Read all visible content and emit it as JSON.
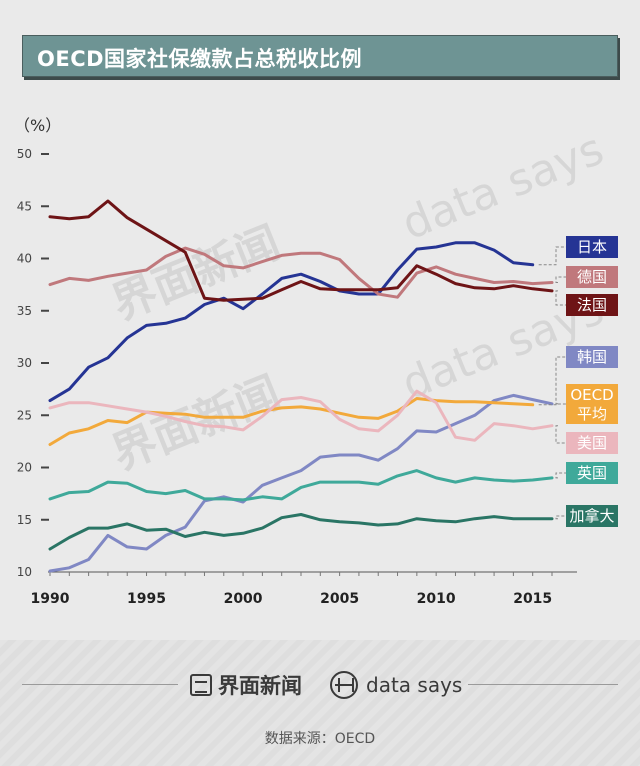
{
  "header": {
    "title": "OECD国家社保缴款占总税收比例"
  },
  "chart_data": {
    "type": "line",
    "title": "OECD国家社保缴款占总税收比例",
    "ylabel": "（%）",
    "xlabel": "",
    "ylim": [
      10,
      50
    ],
    "xlim": [
      1990,
      2016
    ],
    "yticks": [
      10,
      15,
      20,
      25,
      30,
      35,
      40,
      45,
      50
    ],
    "xticks": [
      1990,
      1995,
      2000,
      2005,
      2010,
      2015
    ],
    "x": [
      1990,
      1991,
      1992,
      1993,
      1994,
      1995,
      1996,
      1997,
      1998,
      1999,
      2000,
      2001,
      2002,
      2003,
      2004,
      2005,
      2006,
      2007,
      2008,
      2009,
      2010,
      2011,
      2012,
      2013,
      2014,
      2015,
      2016
    ],
    "series": [
      {
        "name": "日本",
        "color": "#253494",
        "values": [
          26.4,
          27.5,
          29.6,
          30.5,
          32.4,
          33.6,
          33.8,
          34.3,
          35.6,
          36.2,
          35.2,
          36.6,
          38.1,
          38.5,
          37.8,
          36.9,
          36.6,
          36.6,
          38.9,
          40.9,
          41.1,
          41.5,
          41.5,
          40.8,
          39.6,
          39.4,
          null
        ]
      },
      {
        "name": "德国",
        "color": "#c0787c",
        "values": [
          37.5,
          38.1,
          37.9,
          38.3,
          38.6,
          38.9,
          40.2,
          41.0,
          40.4,
          39.3,
          39.1,
          39.7,
          40.3,
          40.5,
          40.5,
          39.9,
          38.1,
          36.6,
          36.3,
          38.6,
          39.2,
          38.5,
          38.1,
          37.7,
          37.8,
          37.6,
          37.7
        ]
      },
      {
        "name": "法国",
        "color": "#6e1416",
        "values": [
          44.0,
          43.8,
          44.0,
          45.5,
          43.9,
          42.8,
          41.7,
          40.6,
          36.2,
          36.0,
          36.1,
          36.2,
          37.0,
          37.8,
          37.1,
          37.0,
          37.0,
          37.0,
          37.2,
          39.3,
          38.5,
          37.6,
          37.2,
          37.1,
          37.4,
          37.1,
          36.9
        ]
      },
      {
        "name": "韩国",
        "color": "#8088c4",
        "values": [
          10.1,
          10.4,
          11.2,
          13.5,
          12.4,
          12.2,
          13.5,
          14.3,
          16.8,
          17.2,
          16.7,
          18.3,
          19.0,
          19.7,
          21.0,
          21.2,
          21.2,
          20.7,
          21.8,
          23.5,
          23.4,
          24.2,
          25.0,
          26.4,
          26.9,
          26.5,
          26.1
        ]
      },
      {
        "name": "OECD平均",
        "color": "#f2a93b",
        "values": [
          22.2,
          23.3,
          23.7,
          24.5,
          24.3,
          25.3,
          25.2,
          25.1,
          24.8,
          24.8,
          24.8,
          25.4,
          25.7,
          25.8,
          25.6,
          25.2,
          24.8,
          24.7,
          25.4,
          26.6,
          26.4,
          26.3,
          26.3,
          26.2,
          26.1,
          26.0,
          null
        ]
      },
      {
        "name": "美国",
        "color": "#ebb6bd",
        "values": [
          25.7,
          26.2,
          26.2,
          25.9,
          25.6,
          25.3,
          24.9,
          24.4,
          24.0,
          23.9,
          23.6,
          24.9,
          26.5,
          26.7,
          26.3,
          24.6,
          23.7,
          23.5,
          25.0,
          27.3,
          26.2,
          22.9,
          22.6,
          24.2,
          24.0,
          23.7,
          24.0
        ]
      },
      {
        "name": "英国",
        "color": "#3fa99a",
        "values": [
          17.0,
          17.6,
          17.7,
          18.6,
          18.5,
          17.7,
          17.5,
          17.8,
          17.0,
          17.0,
          16.9,
          17.2,
          17.0,
          18.1,
          18.6,
          18.6,
          18.6,
          18.4,
          19.2,
          19.7,
          19.0,
          18.6,
          19.0,
          18.8,
          18.7,
          18.8,
          19.0
        ]
      },
      {
        "name": "加拿大",
        "color": "#2a7565",
        "values": [
          12.2,
          13.3,
          14.2,
          14.2,
          14.6,
          14.0,
          14.1,
          13.4,
          13.8,
          13.5,
          13.7,
          14.2,
          15.2,
          15.5,
          15.0,
          14.8,
          14.7,
          14.5,
          14.6,
          15.1,
          14.9,
          14.8,
          15.1,
          15.3,
          15.1,
          15.1,
          15.1
        ]
      }
    ],
    "legend": [
      {
        "text": "日本",
        "bg": "#253494",
        "fg": "#ffffff"
      },
      {
        "text": "德国",
        "bg": "#c0787c",
        "fg": "#ffffff"
      },
      {
        "text": "法国",
        "bg": "#6e1416",
        "fg": "#ffffff"
      },
      {
        "text": "韩国",
        "bg": "#8088c4",
        "fg": "#ffffff"
      },
      {
        "text": "OECD",
        "text2": "平均",
        "bg": "#f2a93b",
        "fg": "#ffffff"
      },
      {
        "text": "美国",
        "bg": "#ebb6bd",
        "fg": "#ffffff"
      },
      {
        "text": "英国",
        "bg": "#3fa99a",
        "fg": "#ffffff"
      },
      {
        "text": "加拿大",
        "bg": "#2a7565",
        "fg": "#ffffff"
      }
    ],
    "watermarks": [
      "界面新闻",
      "data says"
    ]
  },
  "footer": {
    "brand_jiemian": "界面新闻",
    "brand_datasays": "data says",
    "source": "数据来源：OECD"
  }
}
